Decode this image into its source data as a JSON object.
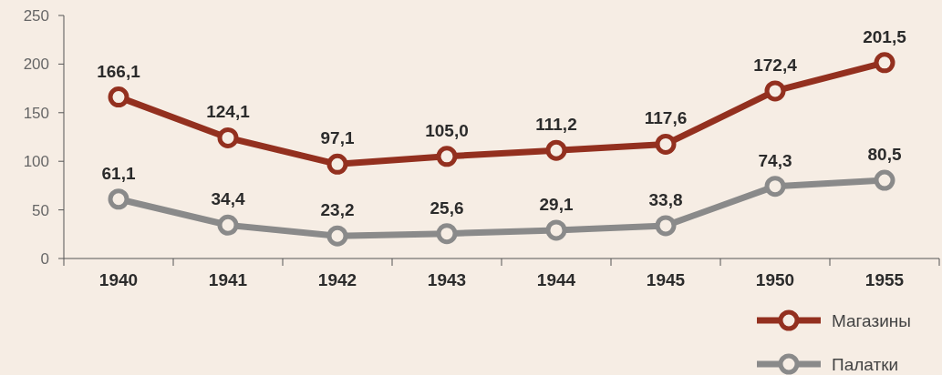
{
  "chart_data": {
    "type": "line",
    "categories": [
      "1940",
      "1941",
      "1942",
      "1943",
      "1944",
      "1945",
      "1950",
      "1955"
    ],
    "series": [
      {
        "name": "Магазины",
        "color": "#93301f",
        "values": [
          166.1,
          124.1,
          97.1,
          105.0,
          111.2,
          117.6,
          172.4,
          201.5
        ],
        "value_labels": [
          "166,1",
          "124,1",
          "97,1",
          "105,0",
          "111,2",
          "117,6",
          "172,4",
          "201,5"
        ]
      },
      {
        "name": "Палатки",
        "color": "#8a8a8a",
        "values": [
          61.1,
          34.4,
          23.2,
          25.6,
          29.1,
          33.8,
          74.3,
          80.5
        ],
        "value_labels": [
          "61,1",
          "34,4",
          "23,2",
          "25,6",
          "29,1",
          "33,8",
          "74,3",
          "80,5"
        ]
      }
    ],
    "ylim": [
      0,
      250
    ],
    "yticks": [
      0,
      50,
      100,
      150,
      200,
      250
    ],
    "grid": false,
    "legend": "bottom right",
    "marker": "circle",
    "line_style": "solid"
  }
}
